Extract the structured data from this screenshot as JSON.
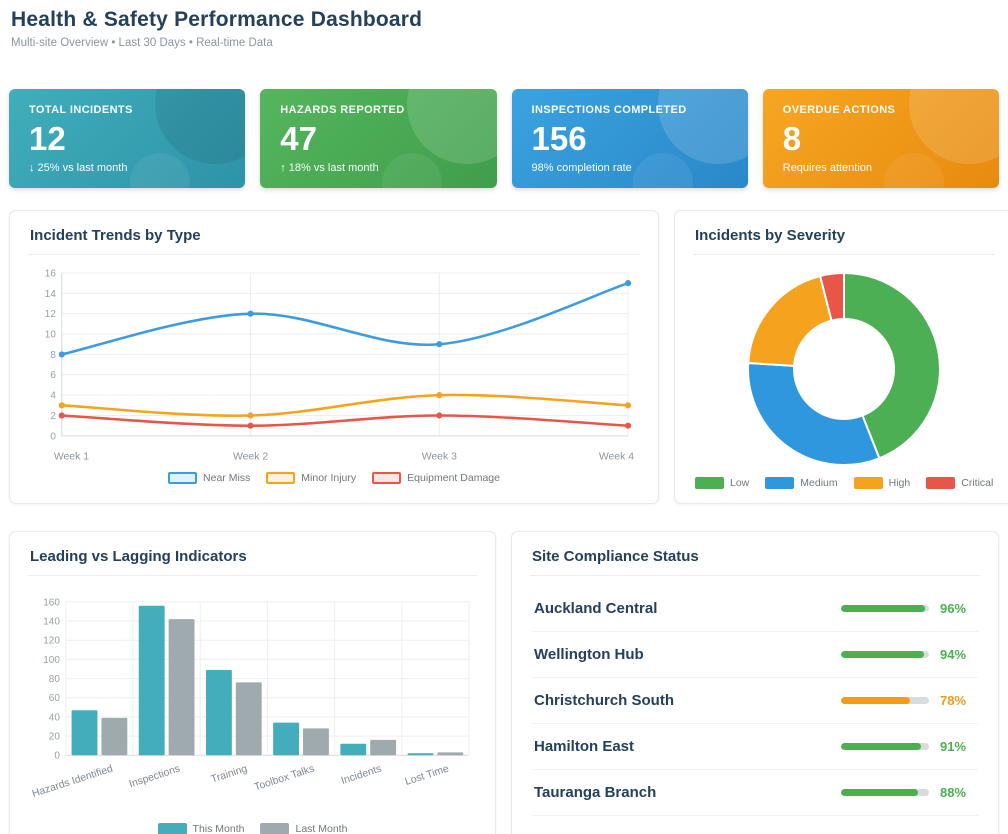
{
  "header": {
    "title": "Health & Safety Performance Dashboard",
    "subtitle": "Multi-site Overview • Last 30 Days • Real-time Data",
    "accent_color": "#4aacb9"
  },
  "kpis": [
    {
      "label": "TOTAL INCIDENTS",
      "value": "12",
      "sub": "↓ 25% vs last month",
      "bg_from": "#41aebb",
      "bg_to": "#2d93a8"
    },
    {
      "label": "HAZARDS REPORTED",
      "value": "47",
      "sub": "↑ 18% vs last month",
      "bg_from": "#55b65e",
      "bg_to": "#3f9e4b"
    },
    {
      "label": "INSPECTIONS COMPLETED",
      "value": "156",
      "sub": "98% completion rate",
      "bg_from": "#3ba2e0",
      "bg_to": "#2a88c8"
    },
    {
      "label": "OVERDUE ACTIONS",
      "value": "8",
      "sub": "Requires attention",
      "bg_from": "#f6a723",
      "bg_to": "#e88a0e"
    }
  ],
  "chart_data": [
    {
      "type": "line",
      "title": "Incident Trends by Type",
      "x": [
        "Week 1",
        "Week 2",
        "Week 3",
        "Week 4"
      ],
      "ylim": [
        0,
        16
      ],
      "ytick_step": 2,
      "grid": true,
      "legend_position": "bottom",
      "series": [
        {
          "name": "Near Miss",
          "color": "#3d9be0",
          "values": [
            8,
            12,
            9,
            15
          ]
        },
        {
          "name": "Minor Injury",
          "color": "#f5a31f",
          "values": [
            3,
            2,
            4,
            3
          ]
        },
        {
          "name": "Equipment Damage",
          "color": "#e8564a",
          "values": [
            2,
            1,
            2,
            1
          ]
        }
      ]
    },
    {
      "type": "pie",
      "variant": "doughnut",
      "title": "Incidents by Severity",
      "labels": [
        "Low",
        "Medium",
        "High",
        "Critical"
      ],
      "values": [
        44,
        32,
        20,
        4
      ],
      "colors": [
        "#4daf54",
        "#2e97de",
        "#f5a31f",
        "#e8564a"
      ],
      "legend_position": "bottom"
    },
    {
      "type": "bar",
      "title": "Leading vs Lagging Indicators",
      "categories": [
        "Hazards Identified",
        "Inspections",
        "Training",
        "Toolbox Talks",
        "Incidents",
        "Lost Time"
      ],
      "ylim": [
        0,
        160
      ],
      "ytick_step": 20,
      "grid": true,
      "legend_position": "bottom",
      "series": [
        {
          "name": "This Month",
          "color": "#44adbc",
          "values": [
            47,
            156,
            89,
            34,
            12,
            2
          ]
        },
        {
          "name": "Last Month",
          "color": "#9faaae",
          "values": [
            39,
            142,
            76,
            28,
            16,
            3
          ]
        }
      ]
    }
  ],
  "compliance": {
    "title": "Site Compliance Status",
    "sites": [
      {
        "name": "Auckland Central",
        "percent": 96,
        "color": "#4caf50"
      },
      {
        "name": "Wellington Hub",
        "percent": 94,
        "color": "#4caf50"
      },
      {
        "name": "Christchurch South",
        "percent": 78,
        "color": "#f59b1b"
      },
      {
        "name": "Hamilton East",
        "percent": 91,
        "color": "#4caf50"
      },
      {
        "name": "Tauranga Branch",
        "percent": 88,
        "color": "#4caf50"
      }
    ]
  }
}
